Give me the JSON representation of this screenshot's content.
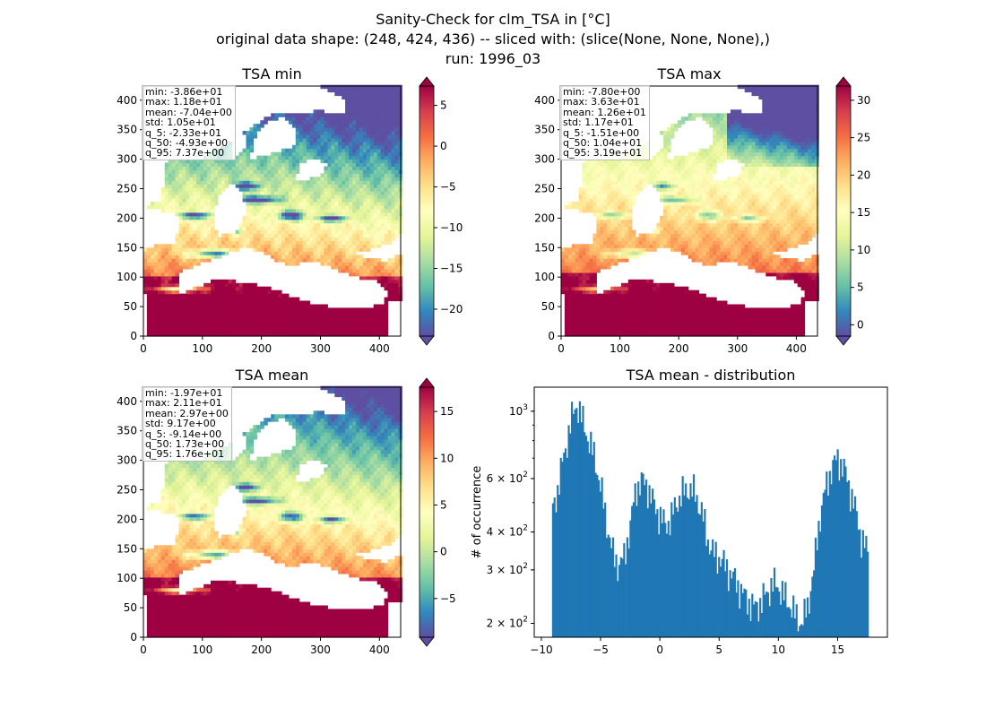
{
  "suptitle": {
    "line1": "Sanity-Check for clm_TSA in [°C]",
    "line2": "original data shape: (248, 424, 436) -- sliced with: (slice(None, None, None),)",
    "line3": "run: 1996_03"
  },
  "chart_data": [
    {
      "type": "heatmap",
      "title": "TSA min",
      "xlim": [
        0,
        436
      ],
      "ylim": [
        0,
        424
      ],
      "xticks": [
        0,
        100,
        200,
        300,
        400
      ],
      "yticks": [
        0,
        50,
        100,
        150,
        200,
        250,
        300,
        350,
        400
      ],
      "colormap": "Spectral_r",
      "clim": [
        -23.3,
        7.37
      ],
      "colorbar_ticks": [
        -20,
        -15,
        -10,
        -5,
        0,
        5
      ],
      "colorbar_extend": "both",
      "stats": [
        "min: -3.86e+01",
        "max: 1.18e+01",
        "mean: -7.04e+00",
        "std: 1.05e+01",
        "q_5: -2.33e+01",
        "q_50: -4.93e+00",
        "q_95: 7.37e+00"
      ]
    },
    {
      "type": "heatmap",
      "title": "TSA max",
      "xlim": [
        0,
        436
      ],
      "ylim": [
        0,
        424
      ],
      "xticks": [
        0,
        100,
        200,
        300,
        400
      ],
      "yticks": [
        0,
        50,
        100,
        150,
        200,
        250,
        300,
        350,
        400
      ],
      "colormap": "Spectral_r",
      "clim": [
        -1.51,
        31.9
      ],
      "colorbar_ticks": [
        0,
        5,
        10,
        15,
        20,
        25,
        30
      ],
      "colorbar_extend": "both",
      "stats": [
        "min: -7.80e+00",
        "max: 3.63e+01",
        "mean: 1.26e+01",
        "std: 1.17e+01",
        "q_5: -1.51e+00",
        "q_50: 1.04e+01",
        "q_95: 3.19e+01"
      ]
    },
    {
      "type": "heatmap",
      "title": "TSA mean",
      "xlim": [
        0,
        436
      ],
      "ylim": [
        0,
        424
      ],
      "xticks": [
        0,
        100,
        200,
        300,
        400
      ],
      "yticks": [
        0,
        50,
        100,
        150,
        200,
        250,
        300,
        350,
        400
      ],
      "colormap": "Spectral_r",
      "clim": [
        -9.14,
        17.6
      ],
      "colorbar_ticks": [
        -5,
        0,
        5,
        10,
        15
      ],
      "colorbar_extend": "both",
      "stats": [
        "min: -1.97e+01",
        "max: 2.11e+01",
        "mean: 2.97e+00",
        "std: 9.17e+00",
        "q_5: -9.14e+00",
        "q_50: 1.73e+00",
        "q_95: 1.76e+01"
      ]
    },
    {
      "type": "bar",
      "title": "TSA mean - distribution",
      "xlabel": "",
      "ylabel": "# of occurrence",
      "yscale": "log",
      "xlim": [
        -10.6,
        19.2
      ],
      "ylim": [
        180,
        1200
      ],
      "xticks": [
        -10,
        -5,
        0,
        5,
        10,
        15
      ],
      "ytick_labels": [
        {
          "value": 200,
          "base": "2 × 10",
          "exp": "2"
        },
        {
          "value": 300,
          "base": "3 × 10",
          "exp": "2"
        },
        {
          "value": 400,
          "base": "4 × 10",
          "exp": "2"
        },
        {
          "value": 600,
          "base": "6 × 10",
          "exp": "2"
        },
        {
          "value": 1000,
          "base": "10",
          "exp": "3"
        }
      ],
      "color": "#1f77b4",
      "series": [
        {
          "x": [
            -9.1,
            17.6
          ],
          "profile": [
            [
              -9.1,
              460
            ],
            [
              -8.6,
              560
            ],
            [
              -8.0,
              740
            ],
            [
              -7.5,
              930
            ],
            [
              -7.0,
              1060
            ],
            [
              -6.5,
              920
            ],
            [
              -6.0,
              800
            ],
            [
              -5.5,
              700
            ],
            [
              -5.0,
              560
            ],
            [
              -4.5,
              430
            ],
            [
              -4.0,
              340
            ],
            [
              -3.5,
              310
            ],
            [
              -3.0,
              330
            ],
            [
              -2.5,
              420
            ],
            [
              -2.0,
              560
            ],
            [
              -1.5,
              590
            ],
            [
              -1.0,
              560
            ],
            [
              -0.5,
              490
            ],
            [
              0.0,
              450
            ],
            [
              0.5,
              420
            ],
            [
              1.0,
              450
            ],
            [
              1.5,
              510
            ],
            [
              2.0,
              540
            ],
            [
              2.5,
              560
            ],
            [
              3.0,
              530
            ],
            [
              3.5,
              470
            ],
            [
              4.0,
              380
            ],
            [
              4.5,
              340
            ],
            [
              5.0,
              330
            ],
            [
              5.5,
              310
            ],
            [
              6.0,
              290
            ],
            [
              6.5,
              270
            ],
            [
              7.0,
              250
            ],
            [
              7.5,
              235
            ],
            [
              8.0,
              225
            ],
            [
              8.5,
              235
            ],
            [
              9.0,
              250
            ],
            [
              9.5,
              270
            ],
            [
              10.0,
              265
            ],
            [
              10.5,
              245
            ],
            [
              11.0,
              230
            ],
            [
              11.5,
              210
            ],
            [
              12.0,
              200
            ],
            [
              12.5,
              230
            ],
            [
              13.0,
              300
            ],
            [
              13.5,
              450
            ],
            [
              14.0,
              560
            ],
            [
              14.5,
              650
            ],
            [
              15.0,
              700
            ],
            [
              15.5,
              650
            ],
            [
              16.0,
              560
            ],
            [
              16.5,
              470
            ],
            [
              17.0,
              380
            ],
            [
              17.6,
              340
            ]
          ]
        }
      ]
    }
  ]
}
